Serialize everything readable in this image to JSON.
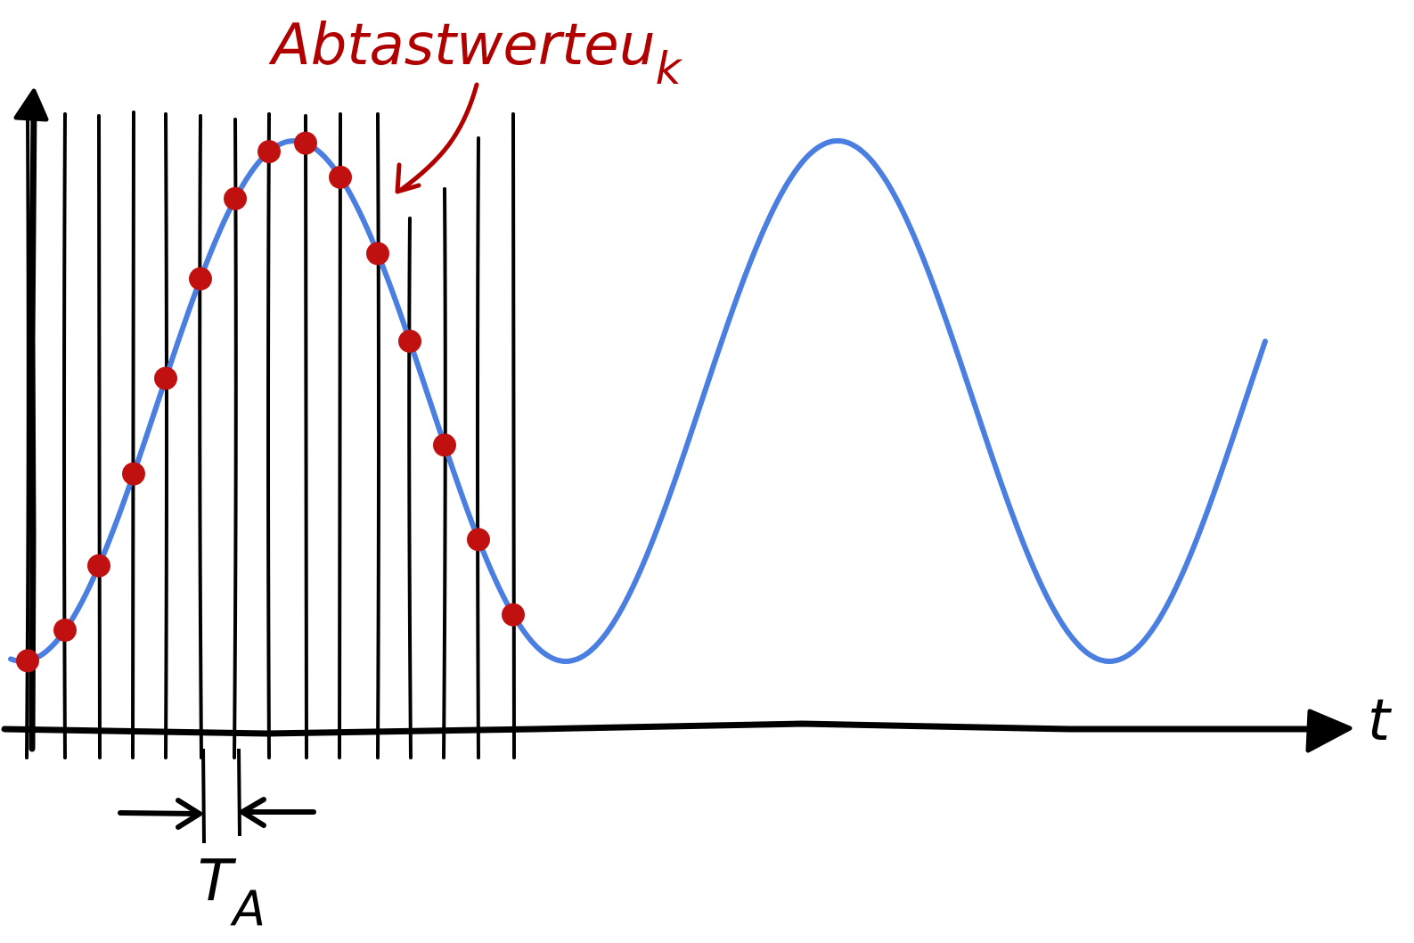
{
  "annotation": {
    "samples_label": "Abtastwerte",
    "samples_symbol_main": "u",
    "samples_symbol_sub": "k"
  },
  "axes": {
    "time_label": "t"
  },
  "period": {
    "label_main": "T",
    "label_sub": "A"
  },
  "colors": {
    "signal": "#4a7ee0",
    "sample_dot": "#c01010",
    "annotation": "#b00000",
    "ink": "#000000"
  }
}
